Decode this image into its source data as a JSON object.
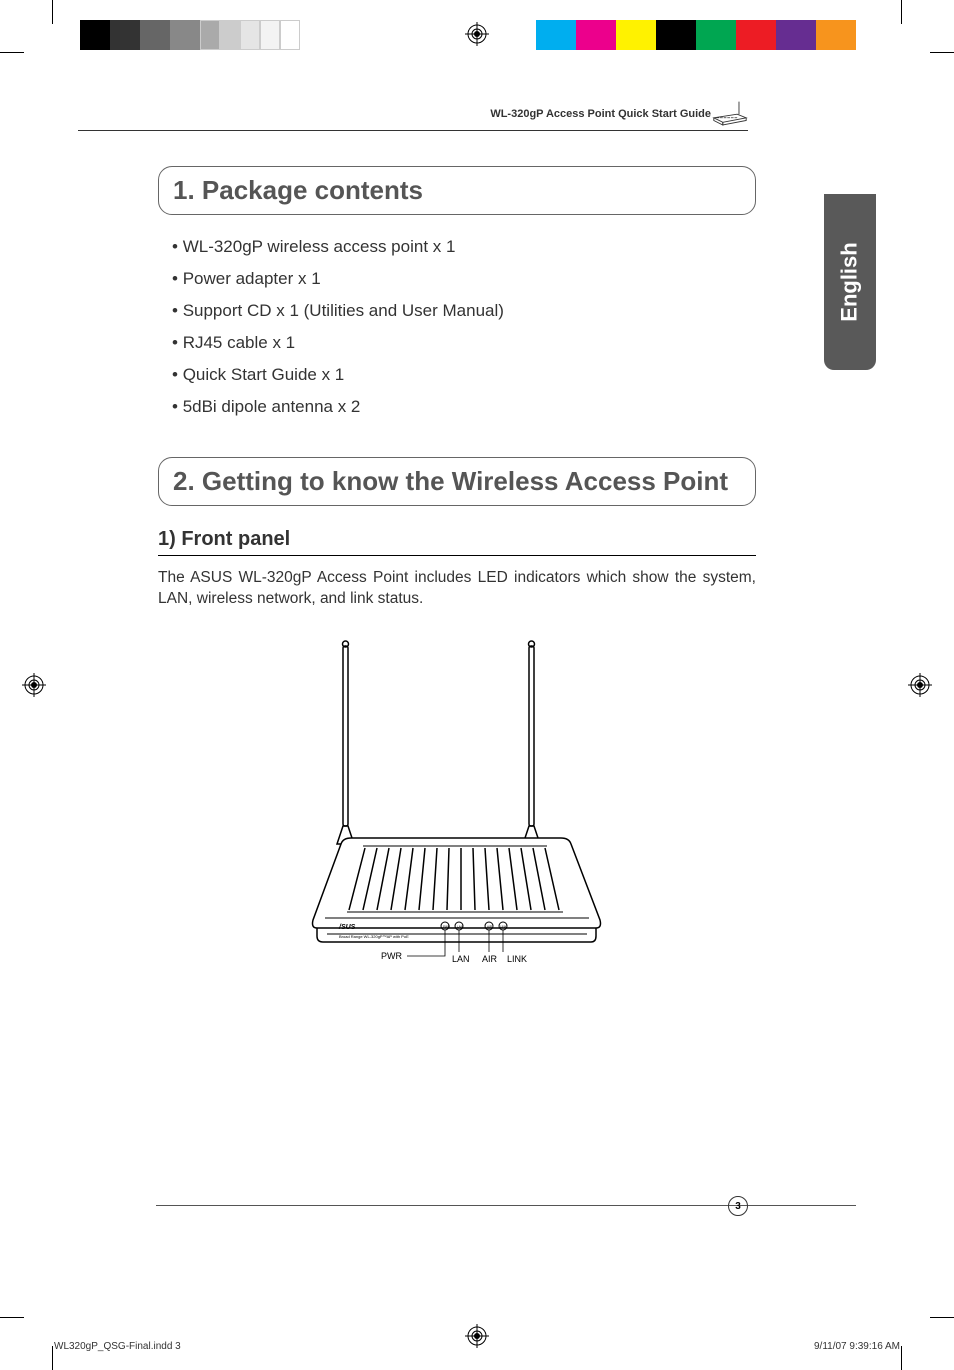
{
  "print_marks": {
    "colorbar_left": [
      "#000000",
      "#333333",
      "#666666",
      "#888888",
      "#aaaaaa",
      "#cccccc",
      "#e5e5e5",
      "#f3f3f3",
      "#ffffff"
    ],
    "colorbar_left_widths": [
      30,
      30,
      30,
      30,
      20,
      20,
      20,
      20,
      20
    ],
    "colorbar_right": [
      "#00aeef",
      "#ec008c",
      "#fff200",
      "#000000",
      "#00a651",
      "#ed1c24",
      "#662d91",
      "#f7941d"
    ],
    "colorbar_right_widths": [
      40,
      40,
      40,
      40,
      40,
      40,
      40,
      40
    ]
  },
  "header": {
    "title": "WL-320gP Access Point Quick Start Guide"
  },
  "language_tab": "English",
  "section1": {
    "title": "1. Package contents",
    "items": [
      "WL-320gP wireless access point x 1",
      "Power adapter x 1",
      "Support CD x 1 (Utilities and User Manual)",
      "RJ45 cable x 1",
      "Quick Start Guide x 1",
      "5dBi dipole antenna x 2"
    ]
  },
  "section2": {
    "title": "2. Getting to know the Wireless Access Point",
    "subhead": "1) Front panel",
    "body": "The ASUS WL-320gP Access Point includes LED indicators which show the system, LAN, wireless network, and link status.",
    "led_labels": [
      "PWR",
      "LAN",
      "AIR",
      "LINK"
    ],
    "device_brand": "/SUS",
    "device_model": "Broad Range WL-320gP™AP with PoE"
  },
  "footer": {
    "page_number": "3",
    "imprint_file": "WL320gP_QSG-Final.indd   3",
    "imprint_date": "9/11/07   9:39:16 AM"
  },
  "colors": {
    "text": "#333333",
    "title_gray": "#555555",
    "tab_bg": "#595959",
    "border": "#666666"
  }
}
